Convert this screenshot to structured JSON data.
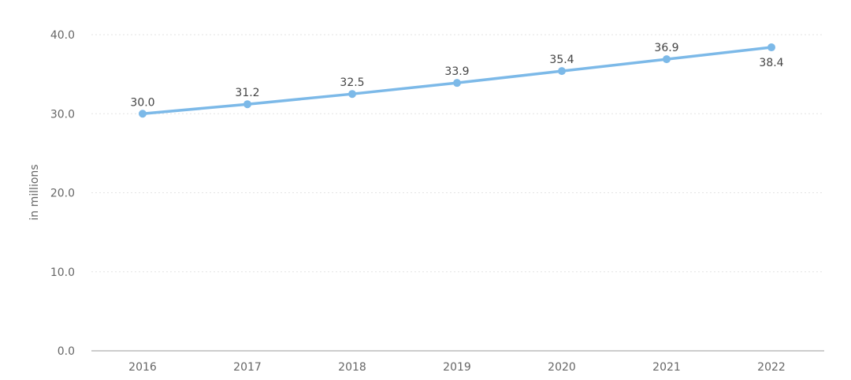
{
  "chart_data": {
    "type": "line",
    "title": "",
    "xlabel": "",
    "ylabel": "in millions",
    "categories": [
      "2016",
      "2017",
      "2018",
      "2019",
      "2020",
      "2021",
      "2022"
    ],
    "series": [
      {
        "values": [
          30.0,
          31.2,
          32.5,
          33.9,
          35.4,
          36.9,
          38.4
        ],
        "labels": [
          "30.0",
          "31.2",
          "32.5",
          "33.9",
          "35.4",
          "36.9",
          "38.4"
        ],
        "color": "#7cb9e8"
      }
    ],
    "ylim": [
      0,
      40
    ],
    "yticks": [
      0,
      10,
      20,
      30,
      40
    ],
    "ytick_labels": [
      "0.0",
      "10.0",
      "20.0",
      "30.0",
      "40.0"
    ],
    "grid": true,
    "legend": "none"
  }
}
